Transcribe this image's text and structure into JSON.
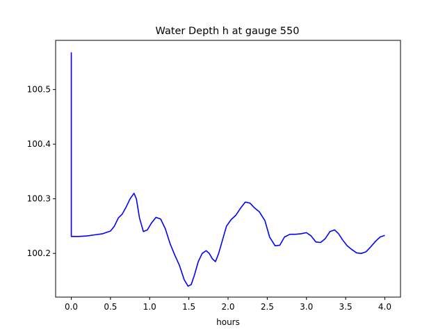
{
  "chart_data": {
    "type": "line",
    "title": "Water Depth h at gauge 550",
    "xlabel": "hours",
    "ylabel": "",
    "xlim": [
      -0.2,
      4.2
    ],
    "ylim": [
      100.12,
      100.59
    ],
    "xticks": [
      0.0,
      0.5,
      1.0,
      1.5,
      2.0,
      2.5,
      3.0,
      3.5,
      4.0
    ],
    "xtick_labels": [
      "0.0",
      "0.5",
      "1.0",
      "1.5",
      "2.0",
      "2.5",
      "3.0",
      "3.5",
      "4.0"
    ],
    "yticks": [
      100.2,
      100.3,
      100.4,
      100.5
    ],
    "ytick_labels": [
      "100.2",
      "100.3",
      "100.4",
      "100.5"
    ],
    "grid": false,
    "series": [
      {
        "color": "#0000ff",
        "x": [
          0.0,
          0.0,
          0.0,
          0.1,
          0.2,
          0.3,
          0.4,
          0.5,
          0.55,
          0.6,
          0.65,
          0.7,
          0.75,
          0.8,
          0.83,
          0.87,
          0.92,
          0.97,
          1.02,
          1.08,
          1.14,
          1.2,
          1.26,
          1.32,
          1.38,
          1.44,
          1.49,
          1.53,
          1.57,
          1.62,
          1.67,
          1.72,
          1.76,
          1.8,
          1.84,
          1.88,
          1.93,
          1.98,
          2.04,
          2.1,
          2.16,
          2.22,
          2.28,
          2.34,
          2.4,
          2.47,
          2.53,
          2.6,
          2.66,
          2.72,
          2.79,
          2.86,
          2.93,
          3.0,
          3.06,
          3.12,
          3.18,
          3.24,
          3.3,
          3.36,
          3.41,
          3.46,
          3.52,
          3.58,
          3.64,
          3.7,
          3.76,
          3.82,
          3.88,
          3.94,
          4.0
        ],
        "y": [
          100.568,
          100.232,
          100.231,
          100.231,
          100.232,
          100.234,
          100.236,
          100.241,
          100.25,
          100.265,
          100.272,
          100.285,
          100.3,
          100.31,
          100.3,
          100.265,
          100.24,
          100.243,
          100.255,
          100.266,
          100.263,
          100.245,
          100.218,
          100.197,
          100.178,
          100.152,
          100.14,
          100.143,
          100.16,
          100.185,
          100.2,
          100.205,
          100.2,
          100.19,
          100.185,
          100.2,
          100.225,
          100.25,
          100.262,
          100.27,
          100.283,
          100.294,
          100.292,
          100.283,
          100.276,
          100.26,
          100.23,
          100.214,
          100.215,
          100.23,
          100.235,
          100.235,
          100.236,
          100.238,
          100.232,
          100.221,
          100.22,
          100.227,
          100.24,
          100.243,
          100.236,
          100.225,
          100.214,
          100.207,
          100.201,
          100.2,
          100.203,
          100.212,
          100.222,
          100.23,
          100.233
        ]
      }
    ]
  }
}
